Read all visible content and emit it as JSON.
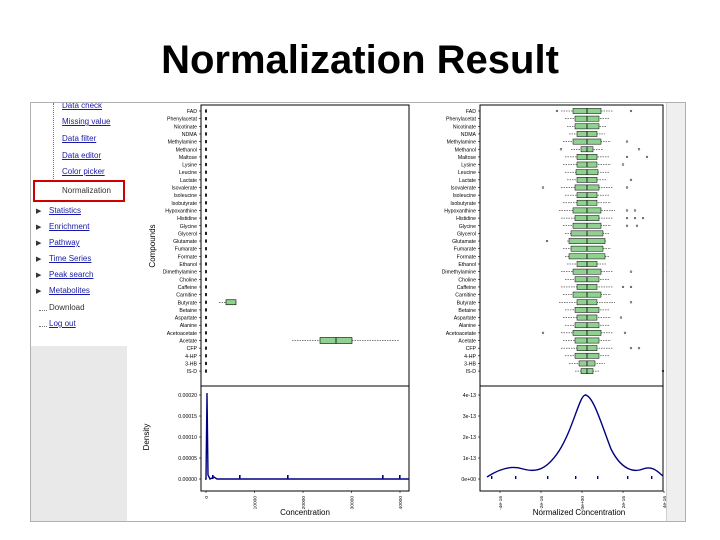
{
  "slide": {
    "title": "Normalization Result"
  },
  "sidebar": {
    "sub_items": [
      {
        "label": "Data check"
      },
      {
        "label": "Missing value"
      },
      {
        "label": "Data filter"
      },
      {
        "label": "Data editor"
      },
      {
        "label": "Color picker"
      },
      {
        "label": "Normalization",
        "selected": true
      }
    ],
    "top_items": [
      {
        "label": "Statistics",
        "expandable": true
      },
      {
        "label": "Enrichment",
        "expandable": true
      },
      {
        "label": "Pathway",
        "expandable": true
      },
      {
        "label": "Time Series",
        "expandable": true
      },
      {
        "label": "Peak search",
        "expandable": true
      },
      {
        "label": "Metabolites",
        "expandable": true
      },
      {
        "label": "Download",
        "expandable": false
      },
      {
        "label": "Log out",
        "expandable": false
      }
    ],
    "selected_border_color": "#d00000",
    "link_color": "#1a1aa8"
  },
  "plots": {
    "compounds_axis_label": "Compounds",
    "density_axis_label": "Density",
    "left_x_label": "Concentration",
    "right_x_label": "Normalized Concentration",
    "box_color": "#90d090",
    "density_line_color": "#000080",
    "compounds": [
      "FAD",
      "Phenylacetat",
      "Nicotinate",
      "NDMA",
      "Methylamine",
      "Methanol",
      "Maltose",
      "Lysine",
      "Leucine",
      "Lactate",
      "Isovalerate",
      "Isoleucine",
      "Isobutyrate",
      "Hypoxanthine",
      "Histidine",
      "Glycine",
      "Glycerol",
      "Glutamate",
      "Fumarate",
      "Formate",
      "Ethanol",
      "Dimethylamine",
      "Choline",
      "Caffeine",
      "Carnitine",
      "Butyrate",
      "Betaine",
      "Aspartate",
      "Alanine",
      "Acetoacetate",
      "Acetate",
      "CFP",
      "4-HP",
      "3-HB",
      "IS-D"
    ],
    "left_density_y_ticks": [
      "0.00020",
      "0.00015",
      "0.00010",
      "0.00005",
      "0.00000"
    ],
    "left_x_ticks": [
      "0",
      "10000",
      "20000",
      "30000",
      "40000"
    ],
    "right_density_y_ticks": [
      "4e-13",
      "3e-13",
      "2e-13",
      "1e-13",
      "0e+00"
    ],
    "right_x_ticks": [
      "-4e-16",
      "-2e-16",
      "0e+00",
      "2e-16",
      "4e-16"
    ]
  }
}
